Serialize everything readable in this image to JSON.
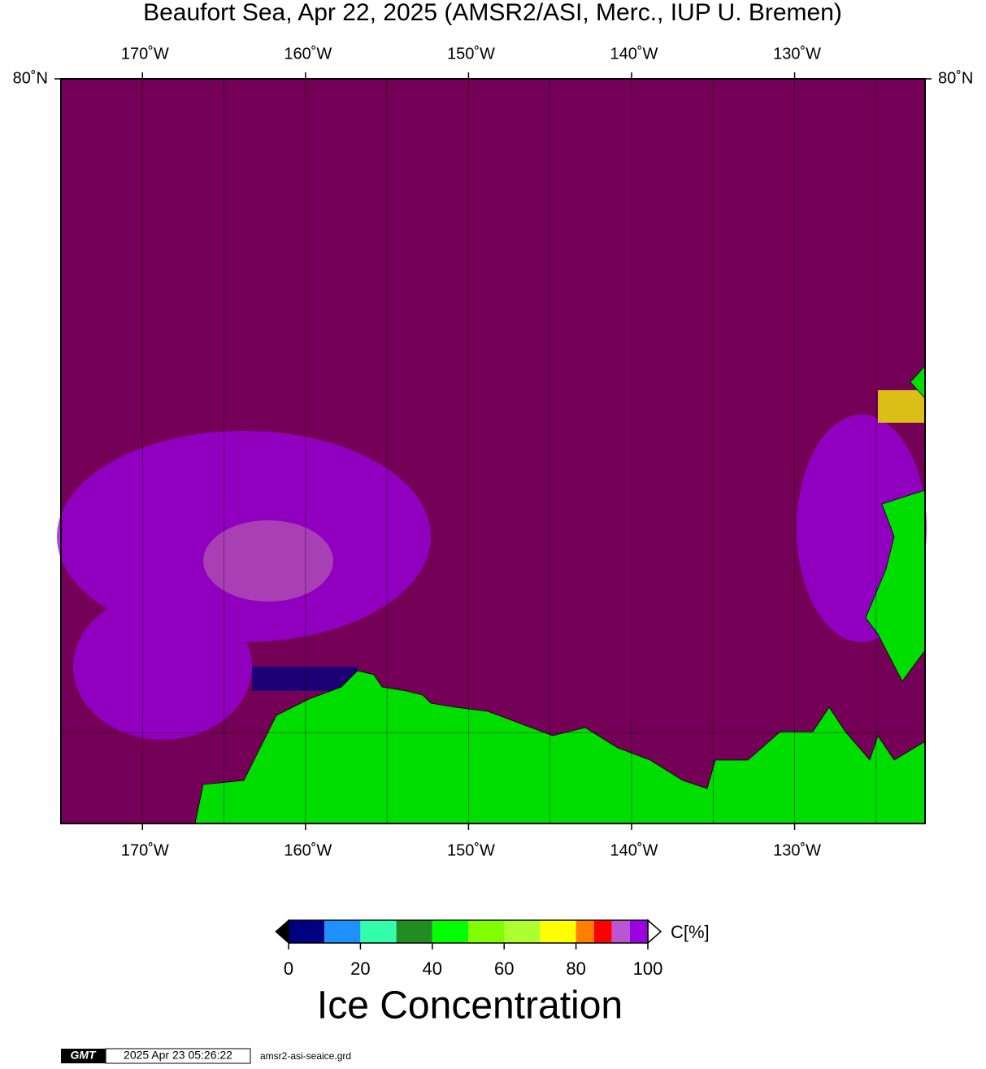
{
  "chart_data": {
    "type": "map",
    "title": "Beaufort Sea, Apr 22, 2025 (AMSR2/ASI, Merc., IUP U. Bremen)",
    "projection": "mercator",
    "xlim": [
      -175,
      -122
    ],
    "ylim": [
      68,
      80
    ],
    "xticks": [
      {
        "value": -170,
        "label": "170˚W"
      },
      {
        "value": -160,
        "label": "160˚W"
      },
      {
        "value": -150,
        "label": "150˚W"
      },
      {
        "value": -140,
        "label": "140˚W"
      },
      {
        "value": -130,
        "label": "130˚W"
      }
    ],
    "yticks": [
      {
        "value": 80,
        "label": "80˚N"
      }
    ],
    "xgrid": [
      -170,
      -165,
      -160,
      -155,
      -150,
      -145,
      -140,
      -135,
      -130,
      -125
    ],
    "ygrid": [
      70
    ],
    "ocean_color": "#750058",
    "land_color": "#00dd00",
    "colorbar": {
      "bins": [
        0,
        10,
        20,
        30,
        40,
        50,
        60,
        70,
        80,
        85,
        90,
        95,
        100
      ],
      "colors": [
        "#000080",
        "#1e90ff",
        "#33ffaa",
        "#228b22",
        "#00ff00",
        "#80ff00",
        "#adff2f",
        "#ffff00",
        "#ff8000",
        "#ff0000",
        "#ba55d3",
        "#9a00e0"
      ],
      "ticks": [
        0,
        20,
        40,
        60,
        80,
        100
      ],
      "unit": "C[%]",
      "label": "Ice Concentration"
    },
    "footer": {
      "logo": "GMT",
      "timestamp": "2025 Apr 23 05:26:22",
      "file": "amsr2-asi-seaice.grd"
    }
  }
}
